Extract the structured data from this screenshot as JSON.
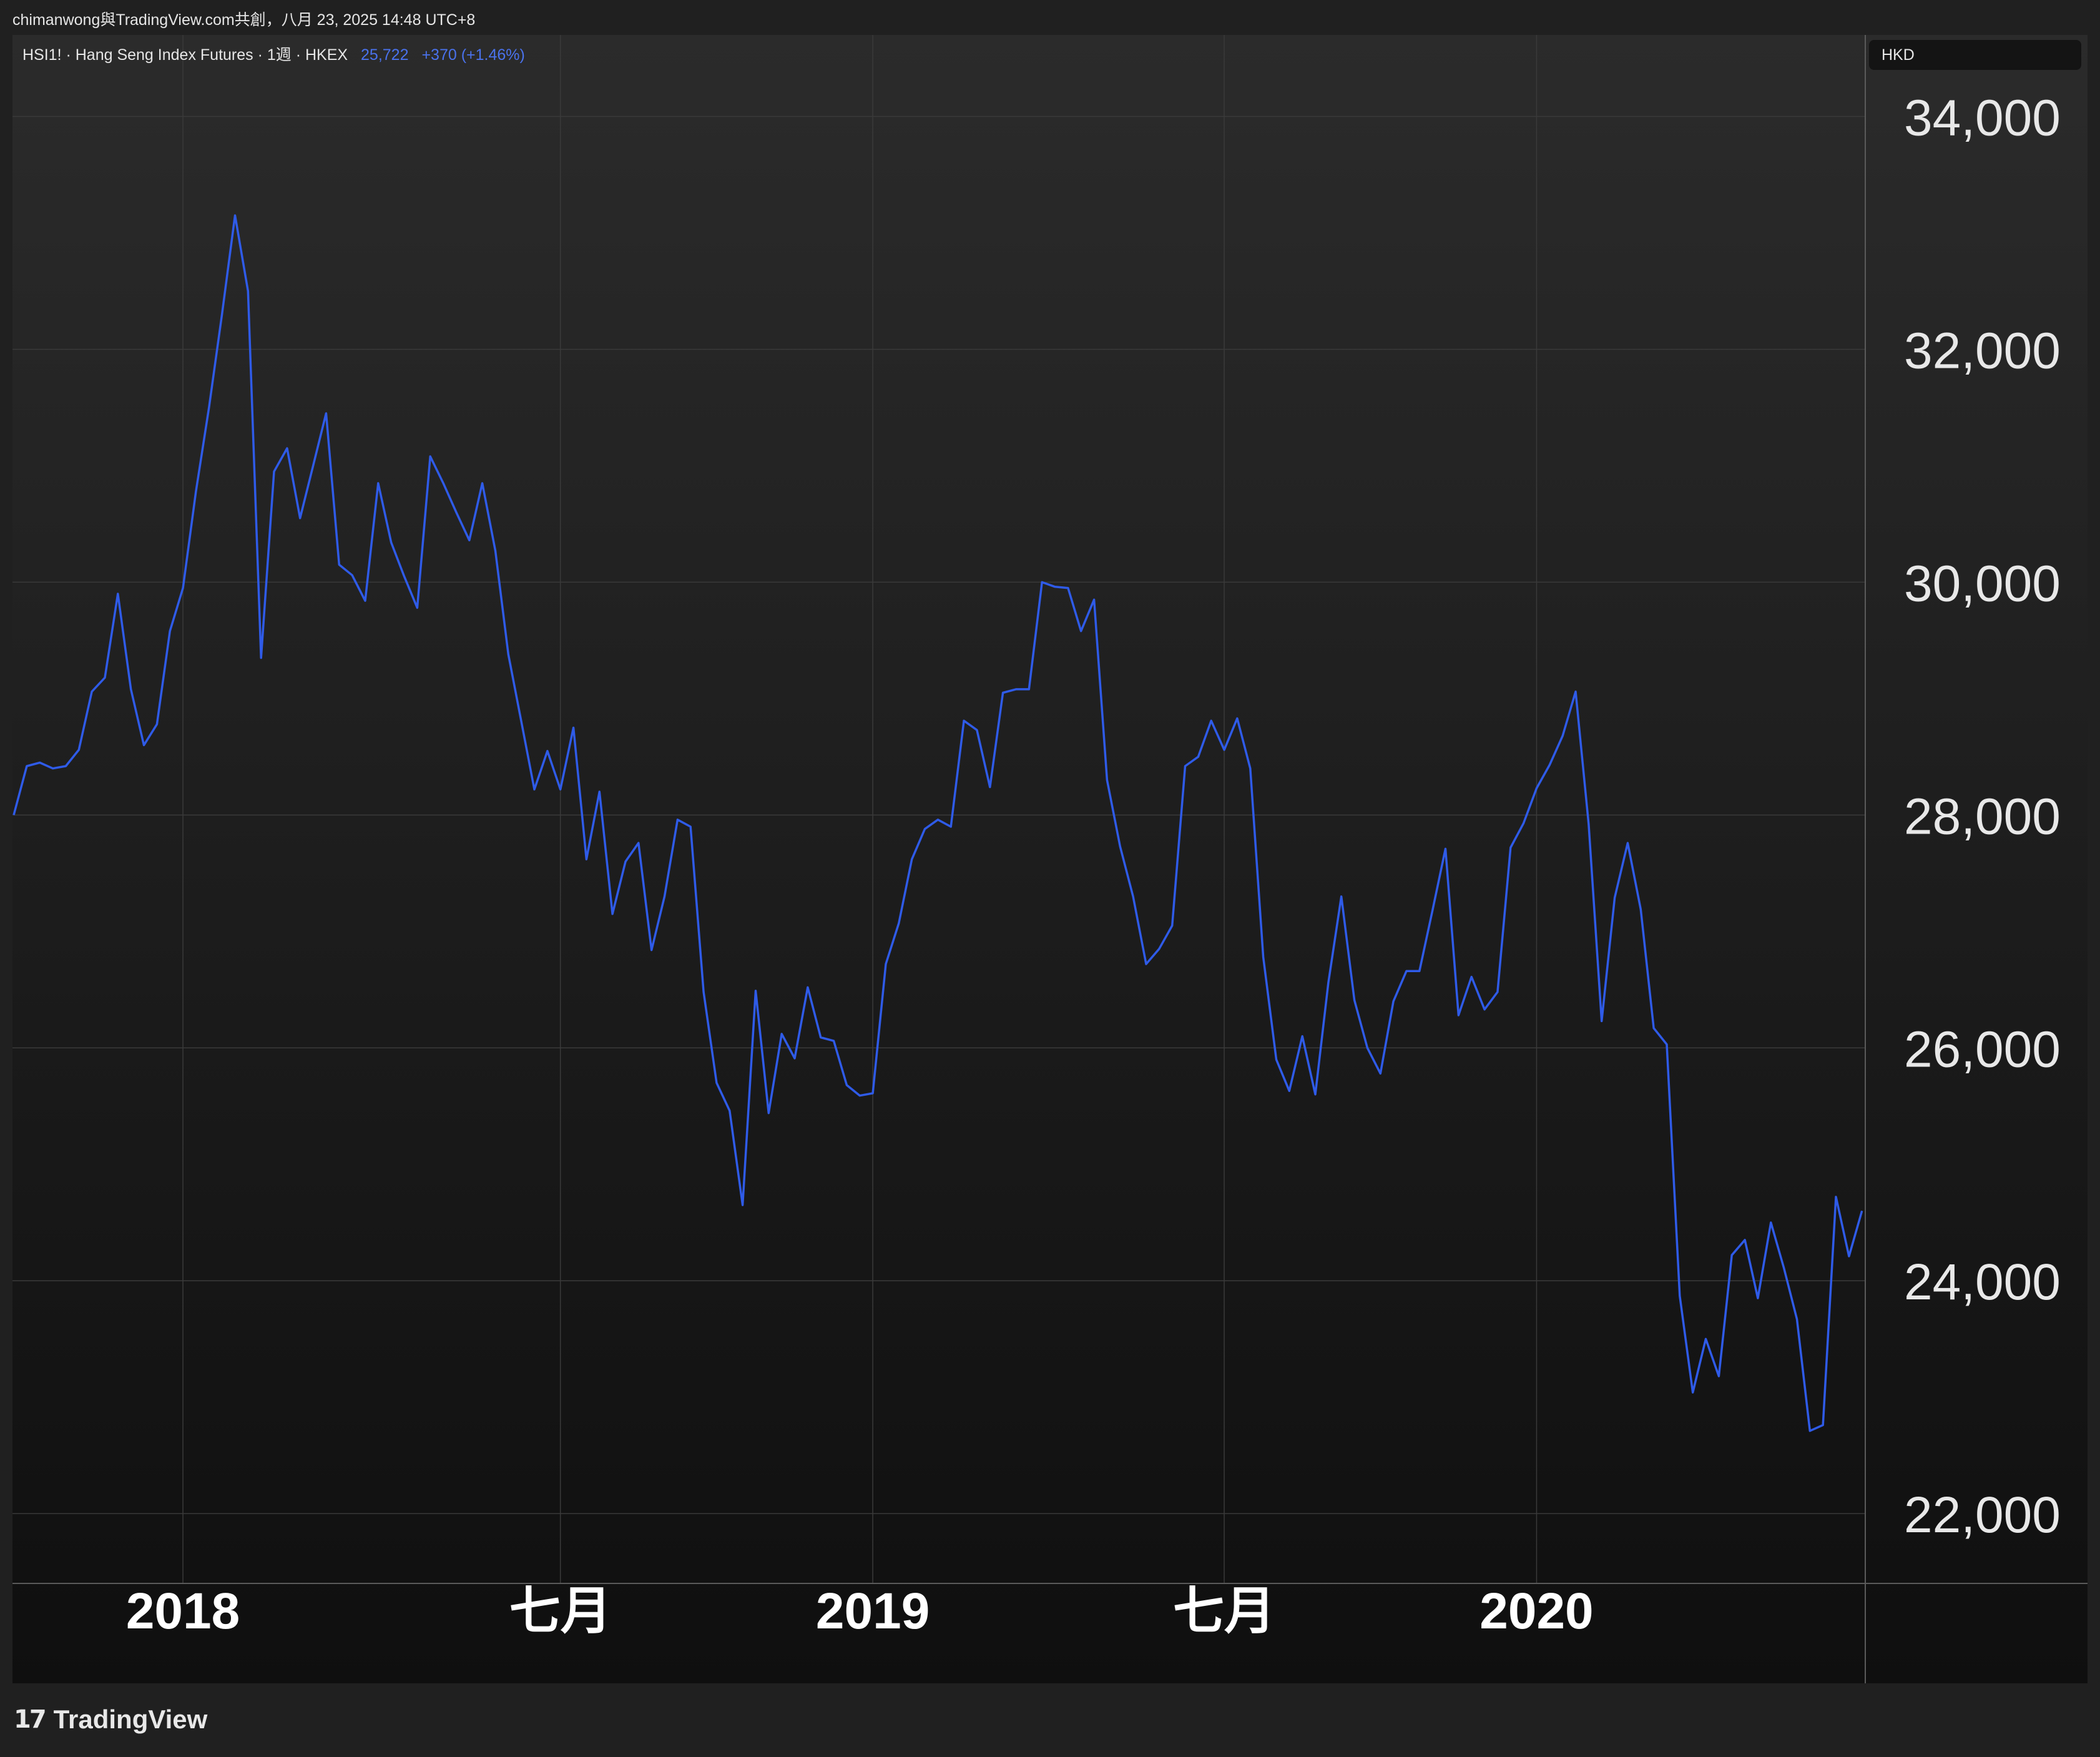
{
  "attribution": "chimanwong與TradingView.com共創，八月 23, 2025 14:48 UTC+8",
  "legend": {
    "symbol": "HSI1! · Hang Seng Index Futures · 1週 · HKEX",
    "last": "25,722",
    "change": "+370 (+1.46%)"
  },
  "currency_label": "HKD",
  "branding": {
    "name": "TradingView"
  },
  "colors": {
    "line": "#2f5be8",
    "background_top": "#2b2b2b",
    "background_bottom": "#0f0f0f",
    "grid": "#3a3a3a"
  },
  "chart_data": {
    "type": "line",
    "interval": "1週",
    "series": [
      {
        "values": [
          28000,
          28420,
          28450,
          28400,
          28420,
          28560,
          29060,
          29180,
          29900,
          29080,
          28600,
          28780,
          29580,
          29950,
          30780,
          31500,
          32300,
          33150,
          32500,
          29350,
          30950,
          31150,
          30550,
          31000,
          31450,
          30150,
          30060,
          29840,
          30850,
          30340,
          30050,
          29780,
          31080,
          30850,
          30600,
          30360,
          30850,
          30270,
          29380,
          28800,
          28220,
          28550,
          28220,
          28750,
          27620,
          28200,
          27150,
          27600,
          27760,
          26840,
          27300,
          27960,
          27900,
          26480,
          25700,
          25460,
          24650,
          26490,
          25440,
          26120,
          25910,
          26520,
          26090,
          26060,
          25680,
          25590,
          25610,
          26720,
          27070,
          27620,
          27880,
          27960,
          27900,
          28810,
          28730,
          28240,
          29050,
          29080,
          29080,
          30000,
          29960,
          29950,
          29580,
          29850,
          28300,
          27730,
          27300,
          26720,
          26850,
          27050,
          28420,
          28500,
          28810,
          28560,
          28830,
          28400,
          26780,
          25900,
          25630,
          26100,
          25600,
          26560,
          27300,
          26410,
          26000,
          25780,
          26400,
          26660,
          26660,
          27180,
          27710,
          26280,
          26610,
          26330,
          26480,
          27720,
          27930,
          28230,
          28430,
          28680,
          29060,
          27920,
          26230,
          27290,
          27760,
          27190,
          26170,
          26030,
          23870,
          23040,
          23500,
          23180,
          24220,
          24350,
          23850,
          24500,
          24110,
          23670,
          22710,
          22760,
          24720,
          24210,
          24600
        ]
      }
    ],
    "x_tick_labels": [
      "2018",
      "七月",
      "2019",
      "七月",
      "2020"
    ],
    "y_tick_labels": [
      "34,000",
      "32,000",
      "30,000",
      "28,000",
      "26,000",
      "24,000",
      "22,000"
    ],
    "y_ticks": [
      34000,
      32000,
      30000,
      28000,
      26000,
      24000,
      22000
    ],
    "ylim": [
      21400,
      34700
    ],
    "grid": true
  }
}
